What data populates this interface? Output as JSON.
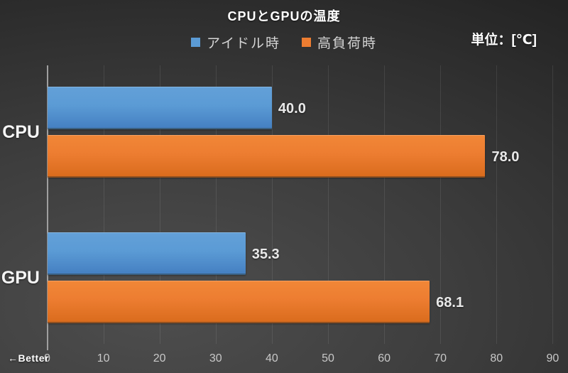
{
  "chart_data": {
    "type": "bar",
    "orientation": "horizontal",
    "title": "CPUとGPUの温度",
    "unit_label": "単位：[℃]",
    "better_label": "←Better",
    "categories": [
      "CPU",
      "GPU"
    ],
    "series": [
      {
        "name": "アイドル時",
        "color": "#5b9bd5",
        "color_light": "#63a0d8",
        "color_dark": "#4580c2",
        "values": [
          40.0,
          35.3
        ],
        "labels": [
          "40.0",
          "35.3"
        ]
      },
      {
        "name": "高負荷時",
        "color": "#ed7d31",
        "color_light": "#f18737",
        "color_dark": "#da6c1d",
        "values": [
          78.0,
          68.1
        ],
        "labels": [
          "78.0",
          "68.1"
        ]
      }
    ],
    "xlim": [
      0,
      90
    ],
    "xticks": [
      0,
      10,
      20,
      30,
      40,
      50,
      60,
      70,
      80,
      90
    ],
    "grid": true,
    "legend_position": "top-center",
    "xlabel": "",
    "ylabel": ""
  }
}
